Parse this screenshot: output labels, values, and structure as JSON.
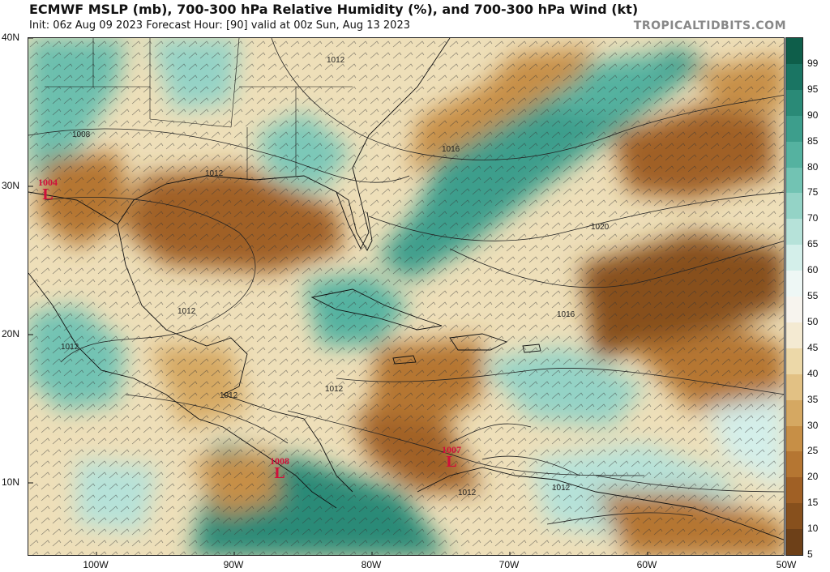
{
  "header": {
    "title": "ECMWF MSLP (mb), 700-300 hPa Relative Humidity (%), and 700-300 hPa Wind (kt)",
    "subtitle": "Init: 06z Aug 09 2023   Forecast Hour: [90]   valid at 00z Sun, Aug 13 2023",
    "credit": "TROPICALTIDBITS.COM"
  },
  "axes": {
    "lat_labels": [
      "40N",
      "30N",
      "20N",
      "10N"
    ],
    "lon_labels": [
      "100W",
      "90W",
      "80W",
      "70W",
      "60W",
      "50W"
    ]
  },
  "colorbar": {
    "labels": [
      "99",
      "95",
      "90",
      "85",
      "80",
      "75",
      "70",
      "65",
      "60",
      "55",
      "50",
      "45",
      "40",
      "35",
      "30",
      "25",
      "20",
      "15",
      "10",
      "5"
    ],
    "colors": [
      "#0e5e4a",
      "#1a7563",
      "#2a8a77",
      "#3d9e8c",
      "#55b2a0",
      "#72c3b3",
      "#94d3c6",
      "#b6e2d9",
      "#d4efea",
      "#eef7f5",
      "#f7f4ee",
      "#f4ead2",
      "#ecd8a8",
      "#e2c184",
      "#d5a862",
      "#c78f46",
      "#b57632",
      "#a06025",
      "#87501d",
      "#6d4018"
    ]
  },
  "lows": [
    {
      "pressure": "1004",
      "symbol": "L"
    },
    {
      "pressure": "1008",
      "symbol": "L"
    },
    {
      "pressure": "1007",
      "symbol": "L"
    }
  ],
  "isobar_labels": [
    "1012",
    "1008",
    "1012",
    "1016",
    "1012",
    "1020",
    "1016",
    "1012",
    "1012",
    "1012",
    "1012",
    "1012"
  ]
}
